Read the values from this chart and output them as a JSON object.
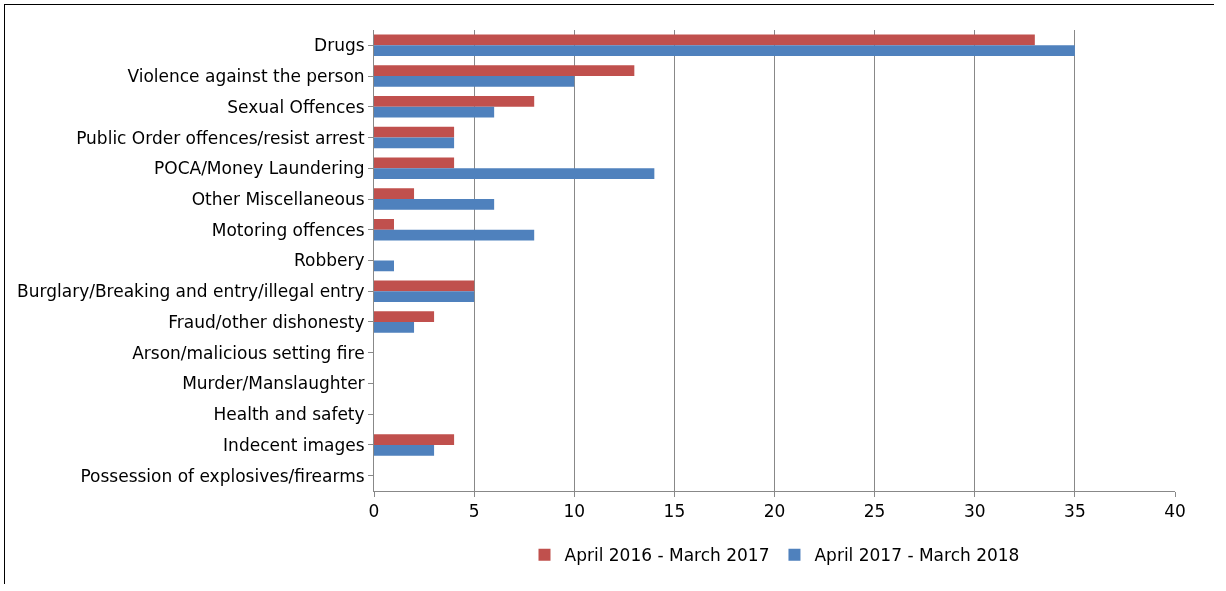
{
  "chart_data": {
    "type": "bar",
    "orientation": "horizontal",
    "categories": [
      "Drugs",
      "Violence against the person",
      "Sexual Offences",
      "Public Order offences/resist arrest",
      "POCA/Money Laundering",
      "Other Miscellaneous",
      "Motoring offences",
      "Robbery",
      "Burglary/Breaking and entry/illegal entry",
      "Fraud/other dishonesty",
      "Arson/malicious setting fire",
      "Murder/Manslaughter",
      "Health and safety",
      "Indecent images",
      "Possession of explosives/firearms"
    ],
    "series": [
      {
        "name": "April 2016 - March 2017",
        "color": "#c0504d",
        "values": [
          33,
          13,
          8,
          4,
          4,
          2,
          1,
          0,
          5,
          3,
          0,
          0,
          0,
          4,
          0
        ]
      },
      {
        "name": "April 2017 - March 2018",
        "color": "#4f81bd",
        "values": [
          35,
          10,
          6,
          4,
          14,
          6,
          8,
          1,
          5,
          2,
          0,
          0,
          0,
          3,
          0
        ]
      }
    ],
    "xlim": [
      0,
      40
    ],
    "xticks": [
      0,
      5,
      10,
      15,
      20,
      25,
      30,
      35,
      40
    ],
    "grid": "x",
    "legend": "bottom"
  }
}
